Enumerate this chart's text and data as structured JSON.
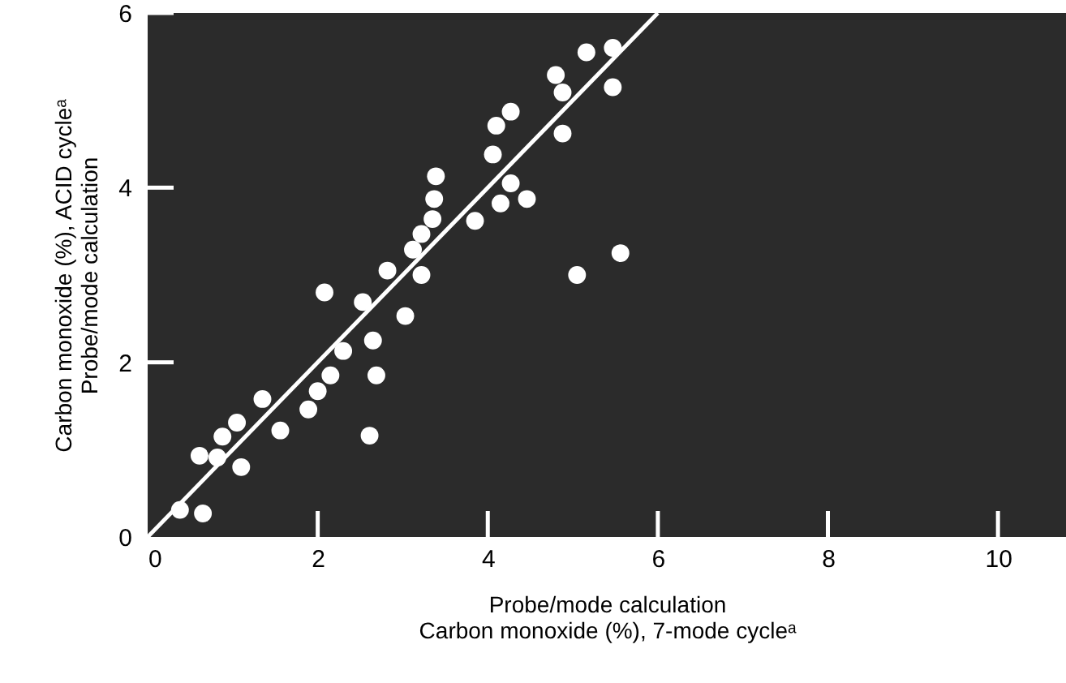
{
  "chart_data": {
    "type": "scatter",
    "xlabel": [
      "Probe/mode calculation",
      "Carbon monoxide (%), 7-mode cycleᵃ"
    ],
    "ylabel": [
      "Carbon monoxide (%), ACID cycleᵃ",
      "Probe/mode calculation"
    ],
    "xlim": [
      0,
      10.8
    ],
    "ylim": [
      0,
      6
    ],
    "xticks": [
      0,
      2,
      4,
      6,
      8,
      10
    ],
    "yticks": [
      0,
      2,
      4,
      6
    ],
    "grid": false,
    "series": [
      {
        "color": "#ffffff",
        "marker": "circle",
        "x": [
          0.38,
          0.65,
          0.61,
          0.82,
          0.88,
          1.05,
          1.1,
          1.35,
          1.56,
          1.89,
          2.0,
          2.08,
          2.15,
          2.3,
          2.53,
          2.61,
          2.65,
          2.69,
          2.82,
          3.03,
          3.12,
          3.22,
          3.22,
          3.35,
          3.37,
          3.39,
          3.85,
          4.06,
          4.1,
          4.27,
          4.27,
          4.15,
          4.46,
          4.8,
          4.88,
          4.88,
          5.16,
          5.47,
          5.47,
          5.56,
          5.05
        ],
        "values": [
          0.31,
          0.27,
          0.93,
          0.91,
          1.15,
          1.31,
          0.8,
          1.58,
          1.22,
          1.46,
          1.67,
          2.8,
          1.85,
          2.13,
          2.69,
          1.16,
          2.25,
          1.85,
          3.05,
          2.53,
          3.29,
          3.0,
          3.47,
          3.64,
          3.87,
          4.13,
          3.62,
          4.38,
          4.71,
          4.87,
          4.05,
          3.82,
          3.87,
          5.29,
          5.09,
          4.62,
          5.55,
          5.6,
          5.15,
          3.25,
          3.0
        ]
      },
      {
        "type": "line",
        "color": "#ffffff",
        "x": [
          0,
          6
        ],
        "values": [
          0,
          6
        ]
      }
    ]
  }
}
